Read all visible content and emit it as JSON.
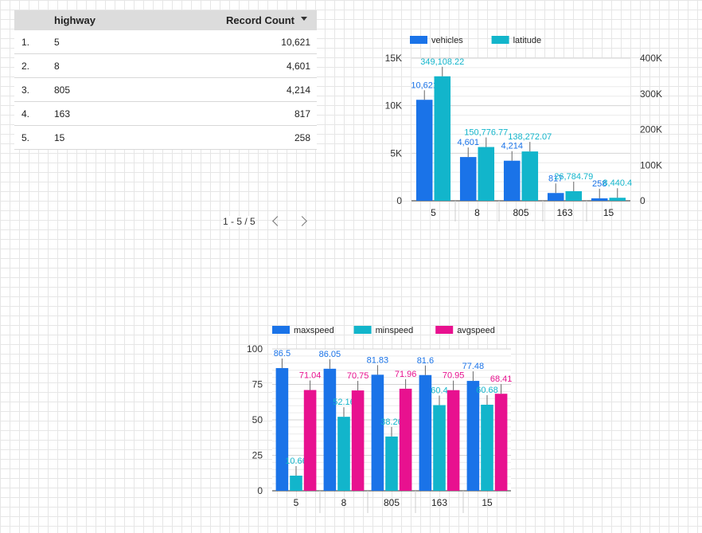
{
  "table": {
    "headers": {
      "highway": "highway",
      "record_count": "Record Count"
    },
    "rows": [
      {
        "index": "1.",
        "highway": "5",
        "count": "10,621"
      },
      {
        "index": "2.",
        "highway": "8",
        "count": "4,601"
      },
      {
        "index": "3.",
        "highway": "805",
        "count": "4,214"
      },
      {
        "index": "4.",
        "highway": "163",
        "count": "817"
      },
      {
        "index": "5.",
        "highway": "15",
        "count": "258"
      }
    ],
    "pagination": "1 - 5 / 5"
  },
  "chart_data": [
    {
      "type": "bar",
      "categories": [
        "5",
        "8",
        "805",
        "163",
        "15"
      ],
      "series": [
        {
          "name": "vehicles",
          "axis": "left",
          "values": [
            10621,
            4601,
            4214,
            817,
            258
          ],
          "labels": [
            "10,621",
            "4,601",
            "4,214",
            "817",
            "258"
          ],
          "color": "#1a73e8"
        },
        {
          "name": "latitude",
          "axis": "right",
          "values": [
            349108.22,
            150776.77,
            138272.07,
            26784.79,
            8440.4
          ],
          "labels": [
            "349,108.22",
            "150,776.77",
            "138,272.07",
            "26,784.79",
            "8,440.4"
          ],
          "color": "#12b5cb"
        }
      ],
      "y_left": {
        "range": [
          0,
          15000
        ],
        "ticks": [
          0,
          5000,
          10000,
          15000
        ],
        "tick_labels": [
          "0",
          "5K",
          "10K",
          "15K"
        ]
      },
      "y_right": {
        "range": [
          0,
          400000
        ],
        "ticks": [
          0,
          100000,
          200000,
          300000,
          400000
        ],
        "tick_labels": [
          "0",
          "100K",
          "200K",
          "300K",
          "400K"
        ]
      },
      "legend": "top-left",
      "grid": true
    },
    {
      "type": "bar",
      "categories": [
        "5",
        "8",
        "805",
        "163",
        "15"
      ],
      "series": [
        {
          "name": "maxspeed",
          "values": [
            86.5,
            86.05,
            81.83,
            81.6,
            77.48
          ],
          "labels": [
            "86.5",
            "86.05",
            "81.83",
            "81.6",
            "77.48"
          ],
          "color": "#1a73e8"
        },
        {
          "name": "minspeed",
          "values": [
            10.66,
            52.16,
            38.26,
            60.4,
            60.68
          ],
          "labels": [
            "10.66",
            "52.16",
            "38.26",
            "60.4",
            "60.68"
          ],
          "color": "#12b5cb"
        },
        {
          "name": "avgspeed",
          "values": [
            71.04,
            70.75,
            71.96,
            70.95,
            68.41
          ],
          "labels": [
            "71.04",
            "70.75",
            "71.96",
            "70.95",
            "68.41"
          ],
          "color": "#e8118f"
        }
      ],
      "y_left": {
        "range": [
          0,
          100
        ],
        "ticks": [
          0,
          25,
          50,
          75,
          100
        ],
        "tick_labels": [
          "0",
          "25",
          "50",
          "75",
          "100"
        ]
      },
      "legend": "top-left",
      "grid": true
    }
  ]
}
